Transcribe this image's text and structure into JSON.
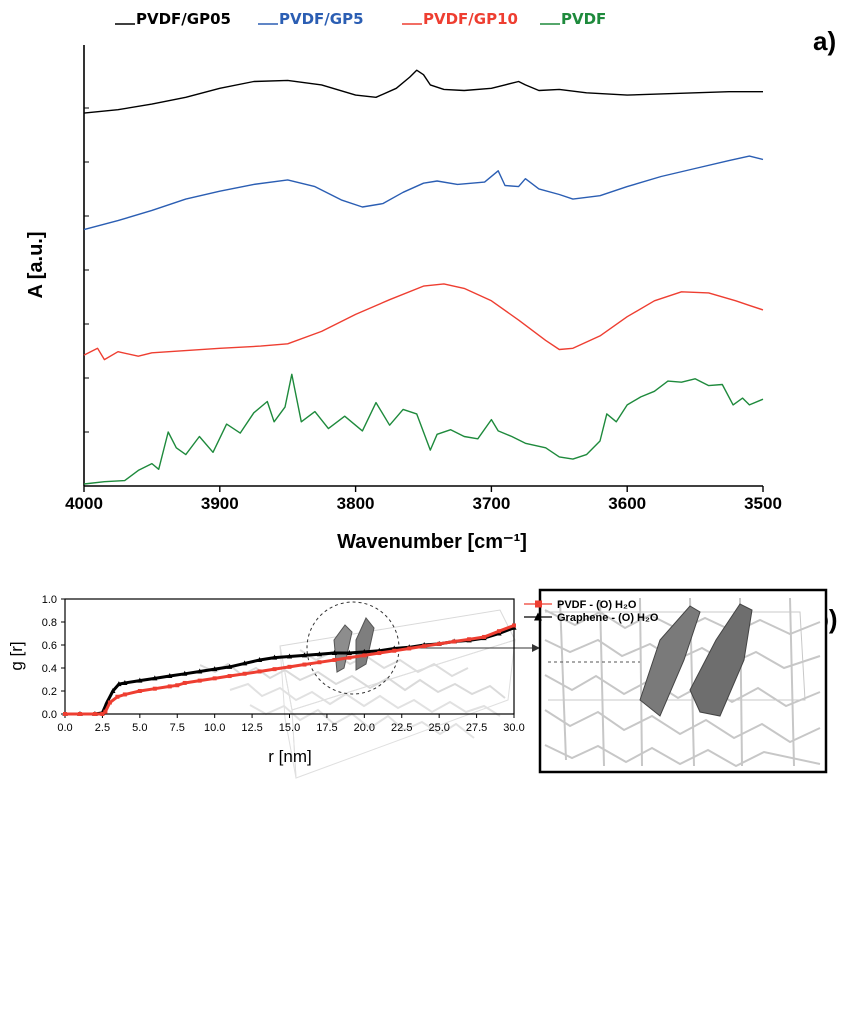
{
  "chart_data": [
    {
      "type": "line",
      "panel_label": "a)",
      "xlabel": "Wavenumber [cm⁻¹]",
      "ylabel": "A [a.u.]",
      "xlim": [
        4000,
        3500
      ],
      "x_reversed": true,
      "y_ticks_labeled": false,
      "x_ticks": [
        4000,
        3900,
        3800,
        3700,
        3600,
        3500
      ],
      "legend_position": "top",
      "series": [
        {
          "name": "PVDF/GP05",
          "color": "#000000",
          "x": [
            4000,
            3975,
            3950,
            3925,
            3900,
            3875,
            3850,
            3825,
            3800,
            3785,
            3770,
            3760,
            3755,
            3750,
            3745,
            3735,
            3720,
            3700,
            3690,
            3680,
            3675,
            3665,
            3650,
            3630,
            3600,
            3575,
            3550,
            3525,
            3500
          ],
          "y": [
            3.28,
            3.31,
            3.36,
            3.42,
            3.5,
            3.56,
            3.57,
            3.53,
            3.44,
            3.42,
            3.5,
            3.6,
            3.66,
            3.62,
            3.53,
            3.49,
            3.48,
            3.5,
            3.53,
            3.56,
            3.53,
            3.48,
            3.49,
            3.46,
            3.44,
            3.45,
            3.46,
            3.47,
            3.47
          ]
        },
        {
          "name": "PVDF/GP5",
          "color": "#2b5eb3",
          "x": [
            4000,
            3975,
            3950,
            3925,
            3900,
            3875,
            3850,
            3830,
            3810,
            3795,
            3780,
            3765,
            3750,
            3740,
            3725,
            3705,
            3695,
            3690,
            3680,
            3675,
            3665,
            3650,
            3640,
            3620,
            3600,
            3575,
            3550,
            3525,
            3510,
            3500
          ],
          "y": [
            2.25,
            2.33,
            2.42,
            2.52,
            2.59,
            2.65,
            2.69,
            2.63,
            2.51,
            2.45,
            2.48,
            2.58,
            2.66,
            2.68,
            2.65,
            2.67,
            2.77,
            2.64,
            2.63,
            2.7,
            2.61,
            2.56,
            2.52,
            2.55,
            2.63,
            2.72,
            2.79,
            2.86,
            2.9,
            2.87
          ]
        },
        {
          "name": "PVDF/GP10",
          "color": "#ee3e31",
          "x": [
            4000,
            3990,
            3985,
            3975,
            3960,
            3950,
            3925,
            3900,
            3870,
            3850,
            3825,
            3800,
            3775,
            3750,
            3735,
            3720,
            3700,
            3680,
            3660,
            3650,
            3640,
            3620,
            3600,
            3580,
            3560,
            3540,
            3520,
            3510,
            3500
          ],
          "y": [
            1.14,
            1.2,
            1.1,
            1.17,
            1.13,
            1.16,
            1.18,
            1.2,
            1.22,
            1.24,
            1.35,
            1.5,
            1.63,
            1.75,
            1.77,
            1.73,
            1.62,
            1.45,
            1.27,
            1.19,
            1.2,
            1.31,
            1.48,
            1.62,
            1.7,
            1.69,
            1.62,
            1.58,
            1.54
          ]
        },
        {
          "name": "PVDF",
          "color": "#1e8a3c",
          "x": [
            4000,
            3985,
            3970,
            3960,
            3950,
            3945,
            3938,
            3932,
            3925,
            3915,
            3905,
            3895,
            3885,
            3875,
            3865,
            3860,
            3852,
            3847,
            3845,
            3840,
            3830,
            3820,
            3808,
            3795,
            3785,
            3775,
            3765,
            3755,
            3745,
            3740,
            3730,
            3720,
            3710,
            3700,
            3695,
            3685,
            3675,
            3660,
            3650,
            3640,
            3630,
            3620,
            3615,
            3608,
            3600,
            3590,
            3580,
            3570,
            3560,
            3550,
            3540,
            3530,
            3522,
            3515,
            3510,
            3500
          ],
          "y": [
            0.0,
            0.02,
            0.03,
            0.12,
            0.18,
            0.13,
            0.46,
            0.32,
            0.26,
            0.42,
            0.28,
            0.53,
            0.45,
            0.63,
            0.73,
            0.55,
            0.68,
            0.97,
            0.85,
            0.55,
            0.64,
            0.49,
            0.6,
            0.47,
            0.72,
            0.52,
            0.66,
            0.62,
            0.3,
            0.44,
            0.48,
            0.42,
            0.4,
            0.57,
            0.47,
            0.42,
            0.36,
            0.32,
            0.24,
            0.22,
            0.26,
            0.38,
            0.62,
            0.55,
            0.7,
            0.77,
            0.82,
            0.91,
            0.9,
            0.93,
            0.87,
            0.88,
            0.7,
            0.76,
            0.7,
            0.75
          ]
        }
      ]
    },
    {
      "type": "scatter",
      "panel_label": "b)",
      "xlabel": "r [nm]",
      "ylabel": "g [r]",
      "xlim": [
        0,
        30
      ],
      "ylim": [
        0,
        1.0
      ],
      "x_ticks": [
        "0.0",
        "2.5",
        "5.0",
        "7.5",
        "10.0",
        "12.5",
        "15.0",
        "17.5",
        "20.0",
        "22.5",
        "25.0",
        "27.5",
        "30.0"
      ],
      "y_ticks": [
        "0.0",
        "0.2",
        "0.4",
        "0.6",
        "0.8",
        "1.0"
      ],
      "legend_position": "top-right",
      "series": [
        {
          "name": "PVDF - (O) H₂O",
          "color": "#ee3e31",
          "marker": "square",
          "x": [
            0,
            1,
            2,
            2.5,
            2.7,
            3.0,
            3.5,
            4,
            5,
            6,
            7,
            7.5,
            8,
            9,
            10,
            11,
            12,
            13,
            14,
            15,
            16,
            17,
            18,
            19,
            20,
            21,
            22,
            23,
            24,
            25,
            26,
            27,
            28,
            29,
            30
          ],
          "y": [
            0.0,
            0.0,
            0.0,
            0.0,
            0.02,
            0.1,
            0.15,
            0.17,
            0.2,
            0.22,
            0.24,
            0.25,
            0.27,
            0.29,
            0.31,
            0.33,
            0.35,
            0.37,
            0.39,
            0.41,
            0.43,
            0.45,
            0.47,
            0.49,
            0.51,
            0.53,
            0.55,
            0.57,
            0.59,
            0.61,
            0.63,
            0.65,
            0.67,
            0.72,
            0.77
          ]
        },
        {
          "name": "Graphene - (O) H₂O",
          "color": "#000000",
          "marker": "triangle",
          "x": [
            0,
            1,
            2,
            2.5,
            2.8,
            3.2,
            3.6,
            4,
            5,
            6,
            7,
            8,
            9,
            10,
            11,
            12,
            13,
            14,
            15,
            16,
            17,
            18,
            19,
            20,
            21,
            22,
            23,
            24,
            25,
            26,
            27,
            28,
            29,
            30
          ],
          "y": [
            0.0,
            0.0,
            0.0,
            0.01,
            0.1,
            0.2,
            0.26,
            0.27,
            0.29,
            0.31,
            0.33,
            0.35,
            0.37,
            0.39,
            0.41,
            0.44,
            0.47,
            0.49,
            0.5,
            0.51,
            0.52,
            0.53,
            0.53,
            0.54,
            0.55,
            0.57,
            0.58,
            0.6,
            0.61,
            0.63,
            0.64,
            0.66,
            0.7,
            0.75
          ]
        }
      ]
    }
  ]
}
